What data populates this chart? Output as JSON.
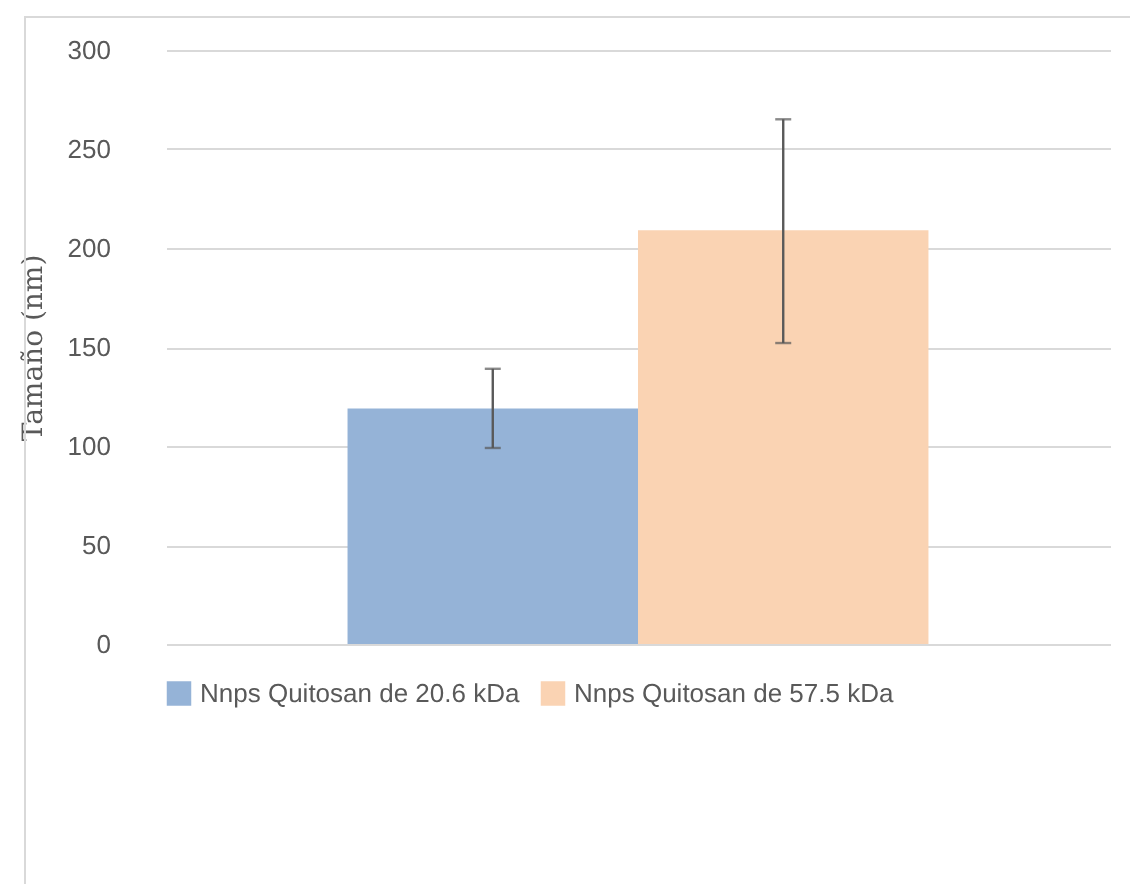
{
  "chart_data": {
    "type": "bar",
    "ylabel": "Tamaño (nm)",
    "categories": [
      null
    ],
    "series": [
      {
        "name": "Nnps Quitosan de 20.6 kDa",
        "color": "#95b3d7",
        "values": [
          119
        ],
        "errors": [
          [
            99,
            139
          ]
        ]
      },
      {
        "name": "Nnps Quitosan de 57.5 kDa",
        "color": "#fad3b3",
        "values": [
          209
        ],
        "errors": [
          [
            152,
            265
          ]
        ]
      }
    ],
    "ylim": [
      0,
      300
    ],
    "yticks": [
      0,
      50,
      100,
      150,
      200,
      250,
      300
    ],
    "grid": "y",
    "legend": "bottom",
    "tick_labels": "y"
  }
}
